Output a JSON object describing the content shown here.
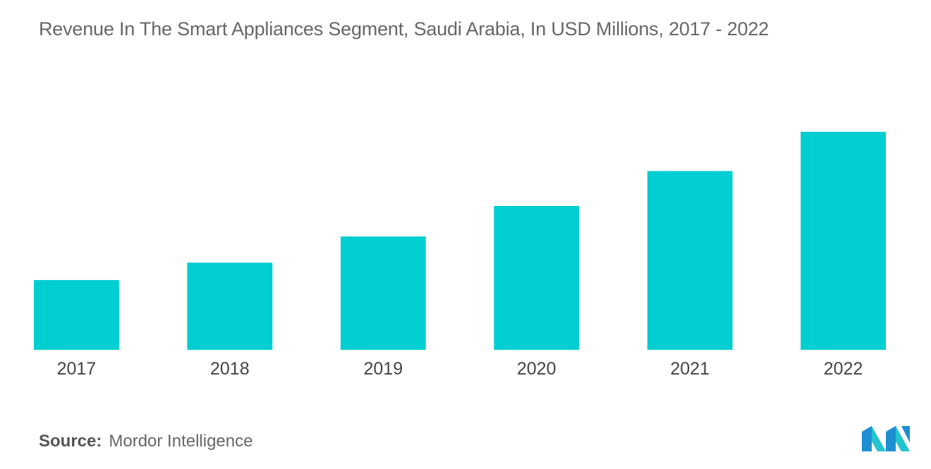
{
  "title": "Revenue In The Smart Appliances Segment, Saudi Arabia, In USD Millions, 2017 - 2022",
  "source": {
    "label": "Source:",
    "text": "Mordor Intelligence"
  },
  "logo": {
    "icon": "mordor-intelligence-logo",
    "colors": [
      "#1d8fd1",
      "#23c3d0"
    ]
  },
  "chart_data": {
    "type": "bar",
    "categories": [
      "2017",
      "2018",
      "2019",
      "2020",
      "2021",
      "2022"
    ],
    "values": [
      32,
      40,
      52,
      66,
      82,
      100
    ],
    "title": "Revenue In The Smart Appliances Segment, Saudi Arabia, In USD Millions, 2017 - 2022",
    "xlabel": "",
    "ylabel": "",
    "ylim": [
      0,
      110
    ],
    "grid": false,
    "legend": "none",
    "bar_color": "#00ced1"
  }
}
